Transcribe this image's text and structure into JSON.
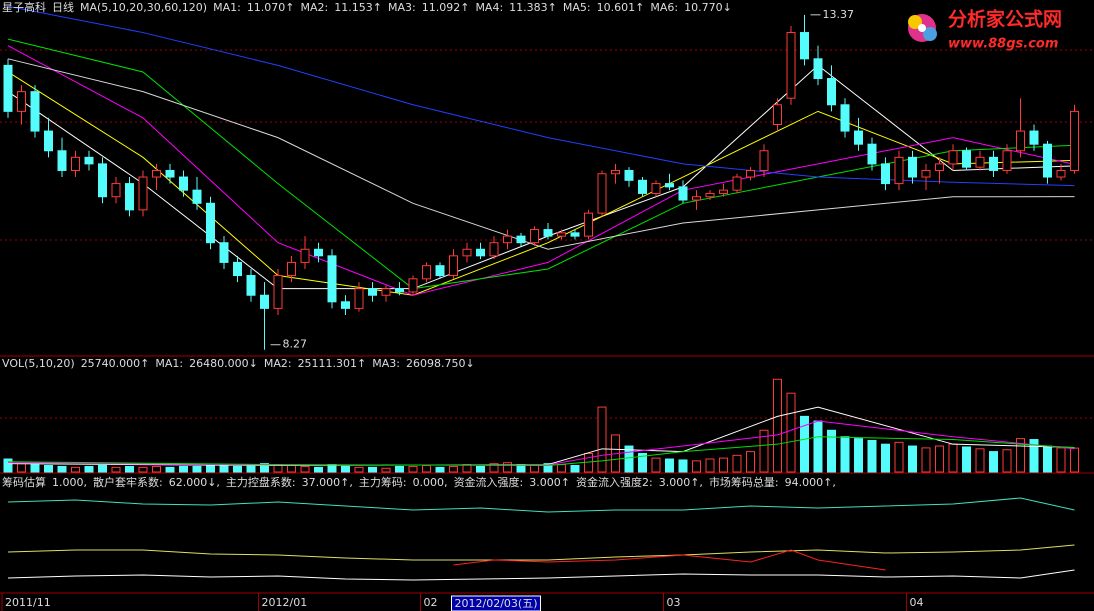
{
  "chart_data": [
    {
      "type": "candlestick",
      "title": "星子高科",
      "period": "日线",
      "indicator": "MA(5,10,20,30,60,120)",
      "ylim": [
        8.19,
        13.55
      ],
      "ohlc": [
        [
          12.6,
          12.7,
          11.8,
          11.9
        ],
        [
          11.9,
          12.3,
          11.7,
          12.2
        ],
        [
          12.2,
          12.3,
          11.5,
          11.6
        ],
        [
          11.6,
          11.8,
          11.2,
          11.3
        ],
        [
          11.3,
          11.5,
          10.9,
          11.0
        ],
        [
          11.0,
          11.3,
          10.9,
          11.2
        ],
        [
          11.2,
          11.3,
          11.0,
          11.1
        ],
        [
          11.1,
          11.2,
          10.5,
          10.6
        ],
        [
          10.6,
          10.9,
          10.5,
          10.8
        ],
        [
          10.8,
          10.9,
          10.3,
          10.4
        ],
        [
          10.4,
          11.0,
          10.3,
          10.9
        ],
        [
          10.9,
          11.1,
          10.7,
          11.0
        ],
        [
          11.0,
          11.1,
          10.8,
          10.9
        ],
        [
          10.9,
          11.0,
          10.6,
          10.7
        ],
        [
          10.7,
          10.9,
          10.4,
          10.5
        ],
        [
          10.5,
          10.6,
          9.8,
          9.9
        ],
        [
          9.9,
          10.0,
          9.5,
          9.6
        ],
        [
          9.6,
          9.7,
          9.3,
          9.4
        ],
        [
          9.4,
          9.5,
          9.0,
          9.1
        ],
        [
          9.1,
          9.3,
          8.27,
          8.9
        ],
        [
          8.9,
          9.5,
          8.8,
          9.4
        ],
        [
          9.4,
          9.7,
          9.3,
          9.6
        ],
        [
          9.6,
          10.0,
          9.5,
          9.8
        ],
        [
          9.8,
          9.9,
          9.6,
          9.7
        ],
        [
          9.7,
          9.8,
          8.9,
          9.0
        ],
        [
          9.0,
          9.1,
          8.8,
          8.9
        ],
        [
          8.9,
          9.3,
          8.85,
          9.2
        ],
        [
          9.2,
          9.3,
          9.0,
          9.1
        ],
        [
          9.1,
          9.25,
          9.0,
          9.2
        ],
        [
          9.2,
          9.3,
          9.1,
          9.15
        ],
        [
          9.15,
          9.4,
          9.1,
          9.35
        ],
        [
          9.35,
          9.6,
          9.3,
          9.55
        ],
        [
          9.55,
          9.6,
          9.35,
          9.4
        ],
        [
          9.4,
          9.8,
          9.35,
          9.7
        ],
        [
          9.7,
          9.9,
          9.6,
          9.8
        ],
        [
          9.8,
          9.9,
          9.65,
          9.7
        ],
        [
          9.7,
          10.0,
          9.65,
          9.9
        ],
        [
          9.9,
          10.1,
          9.8,
          10.0
        ],
        [
          10.0,
          10.05,
          9.85,
          9.9
        ],
        [
          9.9,
          10.15,
          9.85,
          10.1
        ],
        [
          10.1,
          10.2,
          9.95,
          10.0
        ],
        [
          10.0,
          10.1,
          9.95,
          10.05
        ],
        [
          10.05,
          10.1,
          9.95,
          10.0
        ],
        [
          10.0,
          10.4,
          9.95,
          10.35
        ],
        [
          10.35,
          11.0,
          10.3,
          10.95
        ],
        [
          10.95,
          11.1,
          10.8,
          11.0
        ],
        [
          11.0,
          11.05,
          10.75,
          10.85
        ],
        [
          10.85,
          10.9,
          10.6,
          10.65
        ],
        [
          10.65,
          10.85,
          10.6,
          10.8
        ],
        [
          10.8,
          10.95,
          10.7,
          10.75
        ],
        [
          10.75,
          10.85,
          10.5,
          10.55
        ],
        [
          10.55,
          10.7,
          10.4,
          10.6
        ],
        [
          10.6,
          10.7,
          10.55,
          10.65
        ],
        [
          10.65,
          10.8,
          10.6,
          10.7
        ],
        [
          10.7,
          10.95,
          10.65,
          10.9
        ],
        [
          10.9,
          11.05,
          10.85,
          11.0
        ],
        [
          11.0,
          11.4,
          10.9,
          11.3
        ],
        [
          11.7,
          12.1,
          11.6,
          12.0
        ],
        [
          12.1,
          13.2,
          12.0,
          13.1
        ],
        [
          13.1,
          13.37,
          12.6,
          12.7
        ],
        [
          12.7,
          12.9,
          12.3,
          12.4
        ],
        [
          12.4,
          12.6,
          11.9,
          12.0
        ],
        [
          12.0,
          12.1,
          11.5,
          11.6
        ],
        [
          11.6,
          11.8,
          11.3,
          11.4
        ],
        [
          11.4,
          11.5,
          11.0,
          11.1
        ],
        [
          11.1,
          11.2,
          10.7,
          10.8
        ],
        [
          10.8,
          11.3,
          10.7,
          11.2
        ],
        [
          11.2,
          11.3,
          10.8,
          10.9
        ],
        [
          10.9,
          11.1,
          10.7,
          11.0
        ],
        [
          11.0,
          11.2,
          10.8,
          11.1
        ],
        [
          11.1,
          11.4,
          11.0,
          11.3
        ],
        [
          11.3,
          11.35,
          11.0,
          11.05
        ],
        [
          11.05,
          11.3,
          11.0,
          11.2
        ],
        [
          11.2,
          11.3,
          10.9,
          11.0
        ],
        [
          11.0,
          11.4,
          10.95,
          11.3
        ],
        [
          11.3,
          12.1,
          11.2,
          11.6
        ],
        [
          11.6,
          11.7,
          11.3,
          11.4
        ],
        [
          11.4,
          11.45,
          10.8,
          10.9
        ],
        [
          10.9,
          11.1,
          10.85,
          11.0
        ],
        [
          11.0,
          12.0,
          10.95,
          11.9
        ]
      ],
      "series": [
        {
          "name": "MA1:",
          "value_label": "11.070↑",
          "color": "#ffffff",
          "x": [
            0,
            10,
            20,
            30,
            40,
            50,
            60,
            70,
            79
          ],
          "values": [
            12.2,
            10.8,
            9.2,
            9.2,
            10.0,
            10.75,
            12.6,
            11.0,
            11.07
          ]
        },
        {
          "name": "MA2:",
          "value_label": "11.153↑",
          "color": "#ffff00",
          "x": [
            0,
            10,
            20,
            30,
            40,
            50,
            60,
            70,
            79
          ],
          "values": [
            12.5,
            11.2,
            9.4,
            9.1,
            9.9,
            10.9,
            11.9,
            11.1,
            11.153
          ]
        },
        {
          "name": "MA3:",
          "value_label": "11.092↑",
          "color": "#ff00ff",
          "x": [
            0,
            10,
            20,
            30,
            40,
            50,
            60,
            70,
            79
          ],
          "values": [
            12.9,
            11.8,
            9.9,
            9.1,
            9.6,
            10.7,
            11.1,
            11.5,
            11.092
          ]
        },
        {
          "name": "MA4:",
          "value_label": "11.383↑",
          "color": "#00e000",
          "x": [
            0,
            10,
            20,
            30,
            40,
            50,
            60,
            70,
            79
          ],
          "values": [
            13.0,
            12.5,
            10.8,
            9.2,
            9.5,
            10.5,
            10.9,
            11.3,
            11.383
          ]
        },
        {
          "name": "MA5:",
          "value_label": "10.601↑",
          "color": "#d8d8d8",
          "x": [
            0,
            10,
            20,
            30,
            40,
            50,
            60,
            70,
            79
          ],
          "values": [
            12.7,
            12.2,
            11.5,
            10.5,
            9.8,
            10.2,
            10.4,
            10.6,
            10.601
          ]
        },
        {
          "name": "MA6:",
          "value_label": "10.770↓",
          "color": "#2040ff",
          "x": [
            0,
            10,
            20,
            30,
            40,
            50,
            60,
            70,
            79
          ],
          "values": [
            13.5,
            13.1,
            12.6,
            12.0,
            11.5,
            11.1,
            10.9,
            10.82,
            10.77
          ]
        }
      ],
      "annotations": [
        {
          "index": 59,
          "value": 13.37
        },
        {
          "index": 19,
          "value": 8.27
        }
      ]
    },
    {
      "type": "volume",
      "indicator": "VOL(5,10,20)",
      "value_label": "25740.000↑",
      "ylim": [
        0,
        110000
      ],
      "values": [
        14000,
        9000,
        8000,
        7000,
        6000,
        5000,
        6000,
        7000,
        5000,
        6000,
        5000,
        6000,
        5000,
        6000,
        6000,
        7000,
        8000,
        6000,
        7000,
        9000,
        8000,
        7000,
        6000,
        5000,
        8000,
        6000,
        5000,
        5000,
        4000,
        6000,
        6000,
        7000,
        5000,
        6000,
        8000,
        6000,
        9000,
        10000,
        8000,
        7000,
        9000,
        8000,
        7000,
        20000,
        70000,
        40000,
        28000,
        20000,
        15000,
        14000,
        13000,
        12000,
        14000,
        15000,
        18000,
        22000,
        45000,
        100000,
        85000,
        60000,
        55000,
        45000,
        38000,
        36000,
        34000,
        30000,
        32000,
        28000,
        26000,
        28000,
        30000,
        27000,
        25000,
        22000,
        24000,
        36000,
        35000,
        28000,
        26000,
        25740
      ],
      "series": [
        {
          "name": "MA1:",
          "value_label": "26480.000↓",
          "color": "#ffffff",
          "x": [
            0,
            20,
            40,
            44,
            50,
            57,
            60,
            70,
            79
          ],
          "values": [
            9000,
            7000,
            8000,
            25000,
            22000,
            60000,
            70000,
            30000,
            26480
          ]
        },
        {
          "name": "MA2:",
          "value_label": "25111.301↑",
          "color": "#ff00ff",
          "x": [
            0,
            20,
            40,
            44,
            50,
            57,
            60,
            70,
            79
          ],
          "values": [
            10000,
            7500,
            7500,
            18000,
            28000,
            40000,
            55000,
            38000,
            25111.301
          ]
        },
        {
          "name": "MA3:",
          "value_label": "26098.750↓",
          "color": "#00e000",
          "x": [
            0,
            20,
            40,
            44,
            50,
            57,
            60,
            70,
            79
          ],
          "values": [
            11000,
            8000,
            7000,
            12000,
            22000,
            30000,
            38000,
            35000,
            26098.75
          ]
        }
      ]
    },
    {
      "type": "line",
      "ylim": [
        0,
        100
      ],
      "legend": [
        {
          "name": "筹码估算",
          "value_label": "1.000,",
          "color": "#ff4040"
        },
        {
          "name": "散户套牢系数:",
          "value_label": "62.000↓,",
          "color": "#ffffff"
        },
        {
          "name": "主力控盘系数:",
          "value_label": "37.000↑,",
          "color": "#ffffff"
        },
        {
          "name": "主力筹码:",
          "value_label": "0.000,",
          "color": "#00a000"
        },
        {
          "name": "资金流入强度:",
          "value_label": "3.000↑",
          "color": "#ff2020"
        },
        {
          "name": "资金流入强度2:",
          "value_label": "3.000↑,",
          "color": "#ffffff"
        },
        {
          "name": "市场筹码总量:",
          "value_label": "94.000↑,",
          "color": "#ffffff"
        }
      ],
      "lines": [
        {
          "color": "#40e0c0",
          "x": [
            0,
            5,
            10,
            15,
            20,
            25,
            30,
            35,
            40,
            45,
            50,
            55,
            60,
            65,
            70,
            75,
            79
          ],
          "values": [
            88,
            90,
            86,
            85,
            88,
            84,
            80,
            82,
            78,
            80,
            80,
            84,
            82,
            84,
            86,
            92,
            80
          ]
        },
        {
          "color": "#e0e060",
          "x": [
            0,
            5,
            10,
            15,
            20,
            25,
            30,
            35,
            40,
            45,
            50,
            55,
            60,
            65,
            70,
            75,
            79
          ],
          "values": [
            38,
            40,
            40,
            36,
            35,
            32,
            30,
            30,
            30,
            33,
            35,
            38,
            40,
            37,
            38,
            40,
            45
          ]
        },
        {
          "color": "#ffffff",
          "x": [
            0,
            5,
            10,
            15,
            20,
            25,
            30,
            35,
            40,
            45,
            50,
            55,
            60,
            65,
            70,
            75,
            79
          ],
          "values": [
            12,
            14,
            15,
            13,
            14,
            11,
            10,
            11,
            12,
            14,
            16,
            15,
            15,
            13,
            14,
            12,
            20
          ]
        },
        {
          "color": "#ff2020",
          "x": [
            33,
            36,
            40,
            45,
            50,
            55,
            58,
            60,
            65
          ],
          "values": [
            25,
            30,
            28,
            30,
            35,
            28,
            40,
            30,
            20
          ]
        }
      ]
    }
  ],
  "date_axis": [
    {
      "index": 0,
      "label": "2011/11"
    },
    {
      "index": 19,
      "label": "2012/01"
    },
    {
      "index": 31,
      "label": "02"
    },
    {
      "index": 49,
      "label": "03"
    },
    {
      "index": 67,
      "label": "04"
    }
  ],
  "cursor_date": {
    "index": 33,
    "label": "2012/02/03(五)"
  },
  "logo": {
    "title": "分析家公式网",
    "url": "www.88gs.com"
  }
}
